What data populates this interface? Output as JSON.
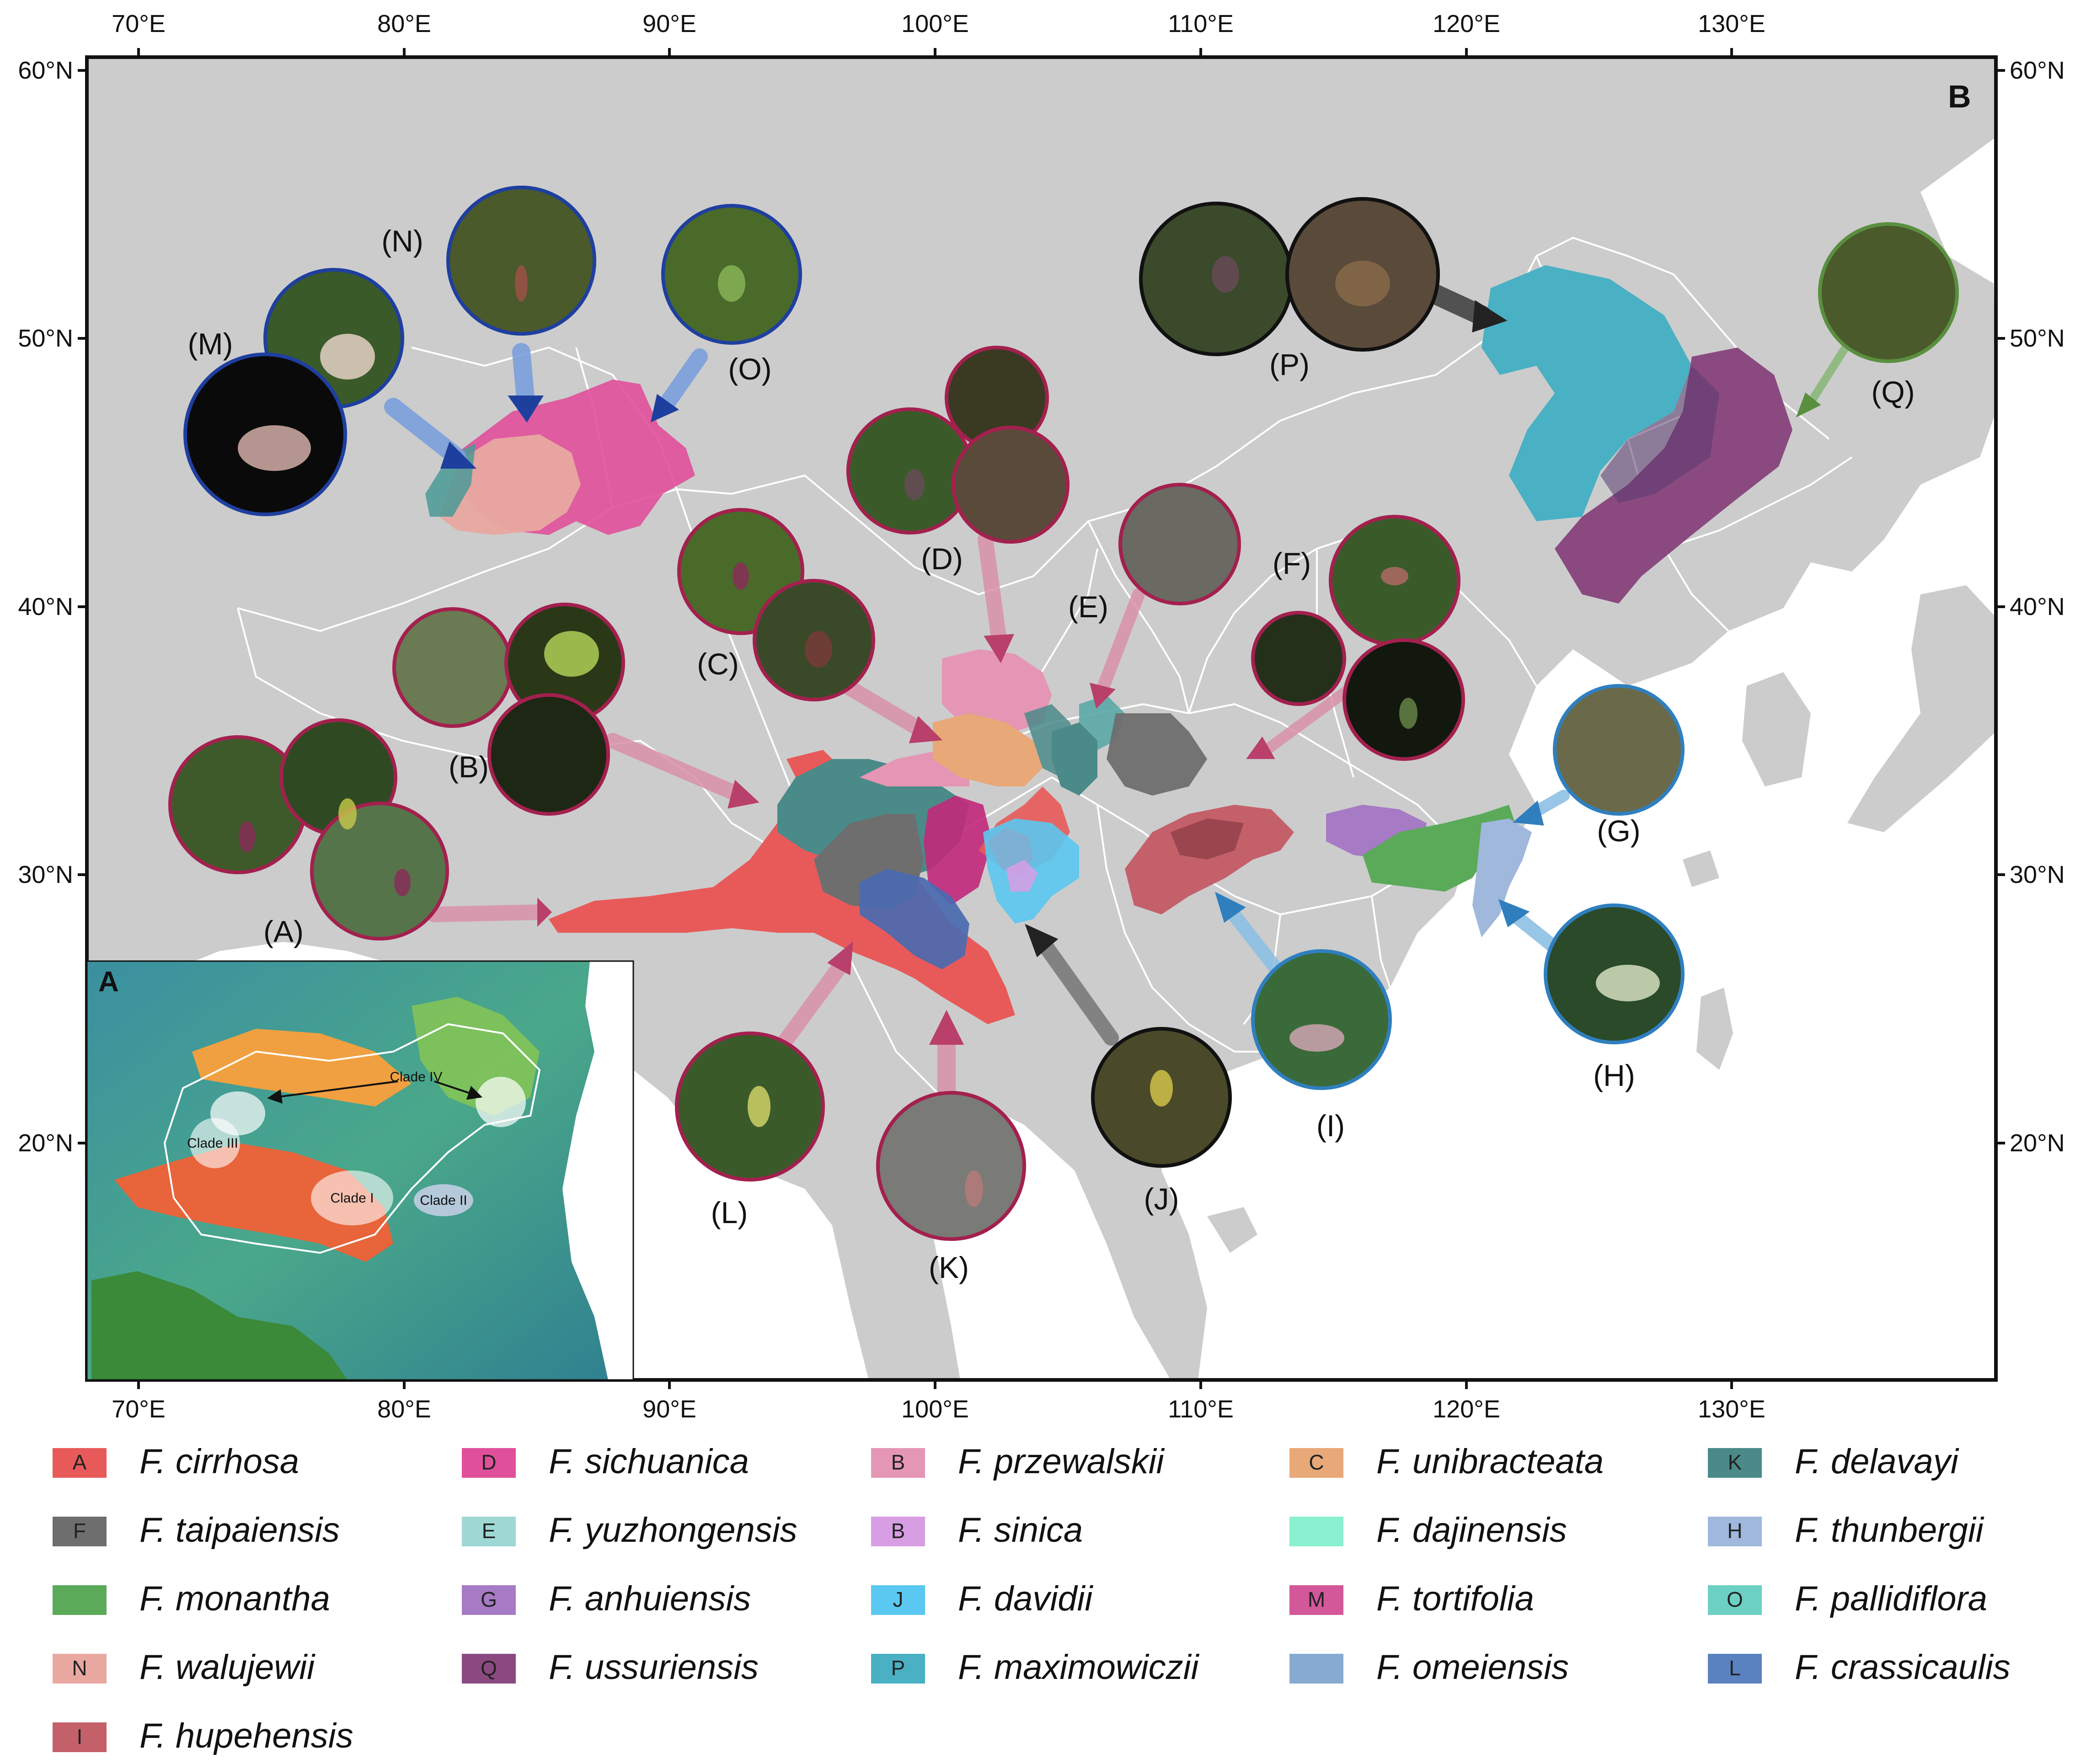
{
  "map": {
    "panel_b_label": "B",
    "panel_a_label": "A",
    "x_ticks": [
      "70°E",
      "80°E",
      "90°E",
      "100°E",
      "110°E",
      "120°E",
      "130°E"
    ],
    "y_ticks": [
      "60°N",
      "50°N",
      "40°N",
      "30°N",
      "20°N"
    ],
    "lon_range": [
      68,
      140
    ],
    "lat_range": [
      11,
      61
    ],
    "land_color": "#cccccc",
    "boundary_color": "#ffffff"
  },
  "inset": {
    "labels": [
      {
        "text": "Clade IV",
        "lon": 121,
        "lat": 56
      },
      {
        "text": "Clade III",
        "lon": 84,
        "lat": 47
      },
      {
        "text": "Clade I",
        "lon": 101,
        "lat": 31
      },
      {
        "text": "Clade II",
        "lon": 115,
        "lat": 29.5
      }
    ]
  },
  "photo_labels": [
    {
      "id": "A",
      "text": "(A)",
      "color": "#a3204e",
      "lon": 74.2,
      "lat": 29.9
    },
    {
      "id": "B",
      "text": "(B)",
      "color": "#a3204e",
      "lon": 82.2,
      "lat": 38.6
    },
    {
      "id": "C",
      "text": "(C)",
      "color": "#a3204e",
      "lon": 90.6,
      "lat": 41.6
    },
    {
      "id": "D",
      "text": "(D)",
      "color": "#a3204e",
      "lon": 99.8,
      "lat": 48.1
    },
    {
      "id": "E",
      "text": "(E)",
      "color": "#a3204e",
      "lon": 105.8,
      "lat": 43.2
    },
    {
      "id": "F",
      "text": "(F)",
      "color": "#a3204e",
      "lon": 113.0,
      "lat": 46.5
    },
    {
      "id": "G",
      "text": "(G)",
      "color": "#2f7fbf",
      "lon": 123.9,
      "lat": 35.0
    },
    {
      "id": "H",
      "text": "(H)",
      "color": "#2f7fbf",
      "lon": 124.9,
      "lat": 30.0
    },
    {
      "id": "I",
      "text": "(I)",
      "color": "#2f7fbf",
      "lon": 114.4,
      "lat": 29.0
    },
    {
      "id": "J",
      "text": "(J)",
      "color": "#111111",
      "lon": 108.0,
      "lat": 30.3
    },
    {
      "id": "K",
      "text": "(K)",
      "color": "#a3204e",
      "lon": 100.1,
      "lat": 29.8
    },
    {
      "id": "L",
      "text": "(L)",
      "color": "#a3204e",
      "lon": 92.7,
      "lat": 30.4
    },
    {
      "id": "M",
      "text": "(M)",
      "color": "#1f3f9f",
      "lon": 72.6,
      "lat": 58.7
    },
    {
      "id": "N",
      "text": "(N)",
      "color": "#1f3f9f",
      "lon": 80.2,
      "lat": 55.6
    },
    {
      "id": "O",
      "text": "(O)",
      "color": "#1f3f9f",
      "lon": 92.2,
      "lat": 51.6
    },
    {
      "id": "P",
      "text": "(P)",
      "color": "#111111",
      "lon": 113.0,
      "lat": 55.1
    },
    {
      "id": "Q",
      "text": "(Q)",
      "color": "#5a8f3f",
      "lon": 136.4,
      "lat": 51.8
    }
  ],
  "legend": [
    {
      "code": "A",
      "name": "F. cirrhosa",
      "color": "#e85a5a"
    },
    {
      "code": "D",
      "name": "F. sichuanica",
      "color": "#e0509a"
    },
    {
      "code": "B",
      "name": "F. przewalskii",
      "color": "#e596b4"
    },
    {
      "code": "C",
      "name": "F. unibracteata",
      "color": "#e8a878"
    },
    {
      "code": "K",
      "name": "F. delavayi",
      "color": "#4a8a88"
    },
    {
      "code": "F",
      "name": "F. taipaiensis",
      "color": "#6e6e6e"
    },
    {
      "code": "E",
      "name": "F. yuzhongensis",
      "color": "#9ed8d4"
    },
    {
      "code": "B",
      "name": "F. sinica",
      "color": "#d89ee4"
    },
    {
      "code": "",
      "name": "F. dajinensis",
      "color": "#8af0d0"
    },
    {
      "code": "H",
      "name": "F. thunbergii",
      "color": "#9fb8dc"
    },
    {
      "code": "",
      "name": "F. monantha",
      "color": "#5aaa5a"
    },
    {
      "code": "G",
      "name": "F. anhuiensis",
      "color": "#a67ac4"
    },
    {
      "code": "J",
      "name": "F. davidii",
      "color": "#5ac8f0"
    },
    {
      "code": "M",
      "name": "F. tortifolia",
      "color": "#d2589a"
    },
    {
      "code": "O",
      "name": "F. pallidiflora",
      "color": "#6cd0c4"
    },
    {
      "code": "N",
      "name": "F. walujewii",
      "color": "#e8a8a0"
    },
    {
      "code": "Q",
      "name": "F. ussuriensis",
      "color": "#8a4a80"
    },
    {
      "code": "P",
      "name": "F. maximowiczii",
      "color": "#4ab0c4"
    },
    {
      "code": "",
      "name": "F. omeiensis",
      "color": "#86aad0"
    },
    {
      "code": "L",
      "name": "F. crassicaulis",
      "color": "#5a82c0"
    },
    {
      "code": "I",
      "name": "F. hupehensis",
      "color": "#c4606a"
    }
  ]
}
